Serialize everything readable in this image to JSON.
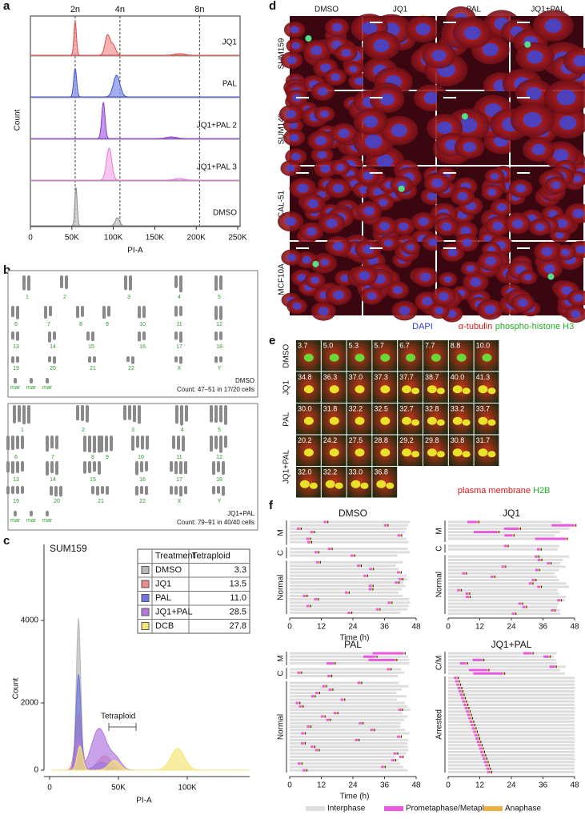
{
  "panel_a": {
    "label": "a",
    "top_ticks": [
      "2n",
      "4n",
      "8n"
    ],
    "samples": [
      "JQ1",
      "PAL",
      "JQ1+PAL 2",
      "JQ1+PAL 3",
      "DMSO"
    ],
    "y_label": "Count",
    "x_ticks": [
      "0",
      "50K",
      "100K",
      "150K",
      "200K",
      "250K"
    ],
    "x_label": "PI-A"
  },
  "panel_b": {
    "label": "b",
    "karyotypes": [
      {
        "chromosomes": [
          "1",
          "2",
          "3",
          "4",
          "5",
          "6",
          "7",
          "8",
          "9",
          "10",
          "11",
          "12",
          "13",
          "14",
          "15",
          "16",
          "17",
          "18",
          "19",
          "20",
          "21",
          "22",
          "X",
          "Y"
        ],
        "markers": [
          "mar",
          "mar",
          "mar"
        ],
        "name": "DMSO",
        "count": "Count: 47–51 in 17/20 cells"
      },
      {
        "chromosomes": [
          "1",
          "2",
          "3",
          "4",
          "5",
          "6",
          "7",
          "8",
          "9",
          "10",
          "11",
          "12",
          "13",
          "14",
          "15",
          "16",
          "17",
          "18",
          "19",
          "20",
          "21",
          "22",
          "X",
          "Y"
        ],
        "markers": [
          "mar",
          "mar",
          "mar"
        ],
        "name": "JQ1+PAL",
        "count": "Count: 79–91 in 40/40 cells"
      }
    ]
  },
  "panel_c": {
    "label": "c",
    "cell_line": "SUM159",
    "y_label": "Count",
    "y_ticks": [
      "0",
      "2000",
      "4000"
    ],
    "x_ticks": [
      "0",
      "50K",
      "100K"
    ],
    "x_label": "PI-A",
    "annotation": "Tetraploid",
    "table": {
      "header": [
        "Treatment",
        "Tetraploid"
      ],
      "rows": [
        [
          "DMSO",
          "3.3"
        ],
        [
          "JQ1",
          "13.5"
        ],
        [
          "PAL",
          "11.0"
        ],
        [
          "JQ1+PAL",
          "28.5"
        ],
        [
          "DCB",
          "27.8"
        ]
      ]
    }
  },
  "panel_d": {
    "label": "d",
    "columns": [
      "DMSO",
      "JQ1",
      "PAL",
      "JQ1+PAL"
    ],
    "rows": [
      "SUM159",
      "SUM149",
      "CAL-51",
      "MCF10A"
    ],
    "legend": [
      "DAPI",
      "α-tubulin",
      "phospho-histone H3"
    ]
  },
  "panel_e": {
    "label": "e",
    "rows": [
      {
        "name": "DMSO",
        "times": [
          "3.7",
          "5.0",
          "5.3",
          "5.7",
          "6.7",
          "7.7",
          "8.8",
          "10.0"
        ]
      },
      {
        "name": "JQ1",
        "times": [
          "34.8",
          "36.3",
          "37.0",
          "37.3",
          "37.7",
          "38.7",
          "40.0",
          "41.3"
        ]
      },
      {
        "name": "PAL",
        "times": [
          "30.0",
          "31.8",
          "32.2",
          "32.5",
          "32.7",
          "32.8",
          "33.2",
          "33.7"
        ]
      },
      {
        "name": "JQ1+PAL",
        "times": [
          "20.2",
          "24.2",
          "27.5",
          "28.8",
          "29.2",
          "29.8",
          "30.8",
          "31.7",
          "32.0",
          "32.2",
          "33.0",
          "36.8"
        ]
      }
    ],
    "legend": [
      "plasma membrane",
      "H2B"
    ]
  },
  "panel_f": {
    "label": "f",
    "plots": [
      {
        "title": "DMSO",
        "groups": [
          "M",
          "C",
          "Normal"
        ]
      },
      {
        "title": "JQ1",
        "groups": [
          "M",
          "C",
          "Normal"
        ]
      },
      {
        "title": "PAL",
        "groups": [
          "M",
          "C",
          "Normal"
        ]
      },
      {
        "title": "JQ1+PAL",
        "groups": [
          "C/M",
          "Arrested"
        ]
      }
    ],
    "x_ticks": [
      "0",
      "12",
      "24",
      "36",
      "48"
    ],
    "x_label": "Time (h)",
    "legend": [
      "Interphase",
      "Prometaphase/Metaphase",
      "Anaphase"
    ]
  }
}
